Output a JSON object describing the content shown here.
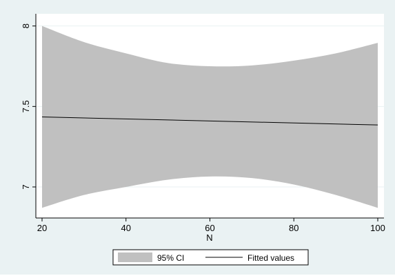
{
  "chart_data": {
    "type": "area",
    "title": "",
    "xlabel": "N",
    "ylabel": "",
    "xlim": [
      20,
      100
    ],
    "ylim": [
      6.85,
      8.02
    ],
    "x_ticks": [
      20,
      40,
      60,
      80,
      100
    ],
    "y_ticks": [
      7,
      7.5,
      8
    ],
    "x_tick_labels": [
      "20",
      "40",
      "60",
      "80",
      "100"
    ],
    "y_tick_labels": [
      "7",
      "7.5",
      "8"
    ],
    "grid": "horizontal",
    "legend_position": "bottom",
    "series": [
      {
        "name": "95% CI",
        "kind": "band",
        "color": "#c0c0c0",
        "x": [
          20,
          30,
          40,
          50,
          60,
          70,
          80,
          90,
          100
        ],
        "lower": [
          6.87,
          6.95,
          7.0,
          7.045,
          7.065,
          7.055,
          7.015,
          6.95,
          6.87
        ],
        "upper": [
          8.0,
          7.9,
          7.83,
          7.77,
          7.75,
          7.755,
          7.785,
          7.83,
          7.895
        ]
      },
      {
        "name": "Fitted values",
        "kind": "line",
        "color": "#000000",
        "x": [
          20,
          100
        ],
        "y": [
          7.435,
          7.385
        ]
      }
    ]
  },
  "colors": {
    "outer_background": "#eaf2f3",
    "plot_background": "#ffffff",
    "gridline": "#eaf2f3",
    "ci_fill": "#c0c0c0",
    "fit_line": "#000000"
  }
}
